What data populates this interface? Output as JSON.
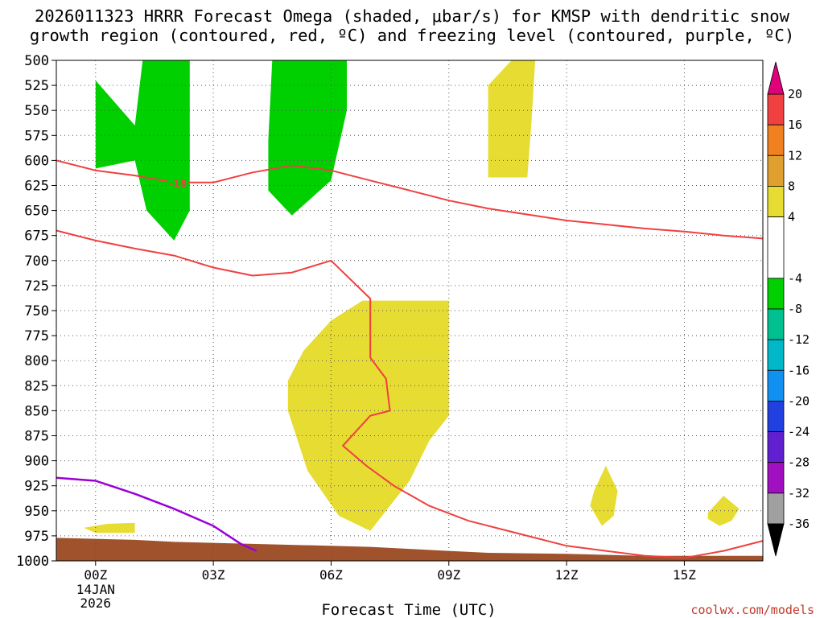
{
  "title_line1": "2026011323 HRRR Forecast Omega (shaded, μbar/s) for KMSP with dendritic snow",
  "title_line2": "growth region (contoured, red, ºC) and freezing level (contoured, purple, ºC)",
  "credit": "coolwx.com/models",
  "chart_data": {
    "type": "time-height cross-section",
    "title": "2026011323 HRRR Forecast Omega (shaded, μbar/s) for KMSP with dendritic snow growth region (contoured, red, ºC) and freezing level (contoured, purple, ºC)",
    "xlabel": "Forecast Time (UTC)",
    "ylabel": "",
    "xlim_hours": [
      -1,
      17
    ],
    "ylim_hPa": [
      1000,
      500
    ],
    "x_ticks": [
      {
        "hour": 0,
        "label": "00Z",
        "sub": [
          "14JAN",
          "2026"
        ]
      },
      {
        "hour": 3,
        "label": "03Z",
        "sub": []
      },
      {
        "hour": 6,
        "label": "06Z",
        "sub": []
      },
      {
        "hour": 9,
        "label": "09Z",
        "sub": []
      },
      {
        "hour": 12,
        "label": "12Z",
        "sub": []
      },
      {
        "hour": 15,
        "label": "15Z",
        "sub": []
      }
    ],
    "y_ticks": [
      500,
      525,
      550,
      575,
      600,
      625,
      650,
      675,
      700,
      725,
      750,
      775,
      800,
      825,
      850,
      875,
      900,
      925,
      950,
      975,
      1000
    ],
    "grid": "dotted",
    "colorbar": {
      "ticks": [
        20,
        16,
        12,
        8,
        4,
        -4,
        -8,
        -12,
        -16,
        -20,
        -24,
        -28,
        -32,
        -36
      ],
      "bins": [
        {
          "from": 16,
          "to": 20,
          "color": "#f04040"
        },
        {
          "from": 12,
          "to": 16,
          "color": "#f08020"
        },
        {
          "from": 8,
          "to": 12,
          "color": "#e0a030"
        },
        {
          "from": 4,
          "to": 8,
          "color": "#e6dc32"
        },
        {
          "from": -4,
          "to": 4,
          "color": "#ffffff"
        },
        {
          "from": -8,
          "to": -4,
          "color": "#00d000"
        },
        {
          "from": -12,
          "to": -8,
          "color": "#00c090"
        },
        {
          "from": -16,
          "to": -12,
          "color": "#00b8c8"
        },
        {
          "from": -20,
          "to": -16,
          "color": "#1090f0"
        },
        {
          "from": -24,
          "to": -20,
          "color": "#2040e0"
        },
        {
          "from": -28,
          "to": -24,
          "color": "#6020d0"
        },
        {
          "from": -32,
          "to": -28,
          "color": "#a010c0"
        },
        {
          "from": -36,
          "to": -32,
          "color": "#a0a0a0"
        }
      ],
      "over_color": "#e0007a",
      "under_color": "#000000"
    },
    "shaded_regions": [
      {
        "name": "upward omega",
        "level": "-8 to -4",
        "color": "#00d000",
        "points": [
          [
            0,
            590
          ],
          [
            0,
            520
          ],
          [
            1,
            565
          ],
          [
            1.2,
            500
          ],
          [
            2.4,
            500
          ],
          [
            2.4,
            650
          ],
          [
            2,
            680
          ],
          [
            1.3,
            650
          ],
          [
            1,
            600
          ],
          [
            0,
            608
          ]
        ]
      },
      {
        "name": "upward omega",
        "level": "-8 to -4",
        "color": "#00d000",
        "points": [
          [
            4.5,
            500
          ],
          [
            6.4,
            500
          ],
          [
            6.4,
            550
          ],
          [
            6,
            620
          ],
          [
            5,
            655
          ],
          [
            4.4,
            630
          ],
          [
            4.4,
            580
          ]
        ]
      },
      {
        "name": "downward omega",
        "level": "4 to 8",
        "color": "#e6dc32",
        "points": [
          [
            10,
            525
          ],
          [
            10.6,
            500
          ],
          [
            11.2,
            500
          ],
          [
            11.1,
            565
          ],
          [
            11,
            617
          ],
          [
            10,
            617
          ]
        ]
      },
      {
        "name": "downward omega",
        "level": "4 to 8",
        "color": "#e6dc32",
        "points": [
          [
            6.8,
            740
          ],
          [
            9,
            740
          ],
          [
            9,
            855
          ],
          [
            8.5,
            880
          ],
          [
            8,
            920
          ],
          [
            7,
            970
          ],
          [
            6.2,
            955
          ],
          [
            5.4,
            910
          ],
          [
            4.9,
            850
          ],
          [
            4.9,
            820
          ],
          [
            5.3,
            790
          ],
          [
            6,
            760
          ]
        ]
      },
      {
        "name": "downward omega",
        "level": "4 to 8",
        "color": "#e6dc32",
        "points": [
          [
            -0.3,
            967
          ],
          [
            0.3,
            963
          ],
          [
            1,
            962
          ],
          [
            1,
            972
          ],
          [
            0,
            972
          ]
        ]
      },
      {
        "name": "downward omega",
        "level": "4 to 8",
        "color": "#e6dc32",
        "points": [
          [
            12.7,
            930
          ],
          [
            13,
            905
          ],
          [
            13.3,
            930
          ],
          [
            13.2,
            955
          ],
          [
            12.9,
            965
          ],
          [
            12.6,
            945
          ]
        ]
      },
      {
        "name": "downward omega",
        "level": "4 to 8",
        "color": "#e6dc32",
        "points": [
          [
            15.6,
            952
          ],
          [
            16,
            935
          ],
          [
            16.4,
            948
          ],
          [
            16.2,
            960
          ],
          [
            15.9,
            965
          ],
          [
            15.6,
            958
          ]
        ]
      }
    ],
    "dendritic_contours": [
      {
        "name": "-18 isotherm",
        "label": "-18",
        "label_at": [
          2.1,
          623
        ],
        "color": "#f04040",
        "points": [
          [
            -1,
            600
          ],
          [
            0,
            610
          ],
          [
            1,
            615
          ],
          [
            2,
            622
          ],
          [
            3,
            622
          ],
          [
            4,
            612
          ],
          [
            5,
            605
          ],
          [
            6,
            610
          ],
          [
            7,
            620
          ],
          [
            8,
            630
          ],
          [
            9,
            640
          ],
          [
            10,
            648
          ],
          [
            12,
            660
          ],
          [
            14,
            668
          ],
          [
            15,
            671
          ],
          [
            16,
            675
          ],
          [
            17,
            678
          ]
        ]
      },
      {
        "name": "-12 isotherm",
        "label": "",
        "color": "#f04040",
        "points": [
          [
            -1,
            670
          ],
          [
            0,
            680
          ],
          [
            1,
            688
          ],
          [
            2,
            695
          ],
          [
            3,
            707
          ],
          [
            4,
            715
          ],
          [
            5,
            712
          ],
          [
            6,
            700
          ],
          [
            7,
            738
          ],
          [
            7,
            797
          ],
          [
            7.4,
            818
          ],
          [
            7.5,
            850
          ],
          [
            7,
            855
          ],
          [
            6.3,
            885
          ],
          [
            6.9,
            905
          ],
          [
            7.6,
            925
          ],
          [
            8.5,
            945
          ],
          [
            9.5,
            960
          ],
          [
            11,
            975
          ],
          [
            12,
            985
          ],
          [
            13,
            990
          ],
          [
            14,
            995
          ],
          [
            15,
            997
          ],
          [
            16,
            990
          ],
          [
            17,
            980
          ]
        ]
      }
    ],
    "freezing_level_contours": [
      {
        "name": "0 isotherm",
        "label": "",
        "color": "#9a00d6",
        "points": [
          [
            -1,
            917
          ],
          [
            0,
            920
          ],
          [
            1,
            933
          ],
          [
            2,
            948
          ],
          [
            3,
            965
          ],
          [
            3.7,
            983
          ],
          [
            4.1,
            990
          ]
        ]
      }
    ],
    "terrain": {
      "name": "ground",
      "color": "#a0522d",
      "top_points": [
        [
          -1,
          977
        ],
        [
          0,
          978
        ],
        [
          1,
          979
        ],
        [
          2,
          981
        ],
        [
          4,
          983
        ],
        [
          5,
          984
        ],
        [
          6,
          985
        ],
        [
          7,
          986
        ],
        [
          8,
          988
        ],
        [
          9,
          990
        ],
        [
          10,
          992
        ],
        [
          12,
          993
        ],
        [
          13,
          994
        ],
        [
          14,
          995
        ],
        [
          15,
          995
        ],
        [
          16,
          995
        ],
        [
          17,
          995
        ]
      ]
    }
  }
}
